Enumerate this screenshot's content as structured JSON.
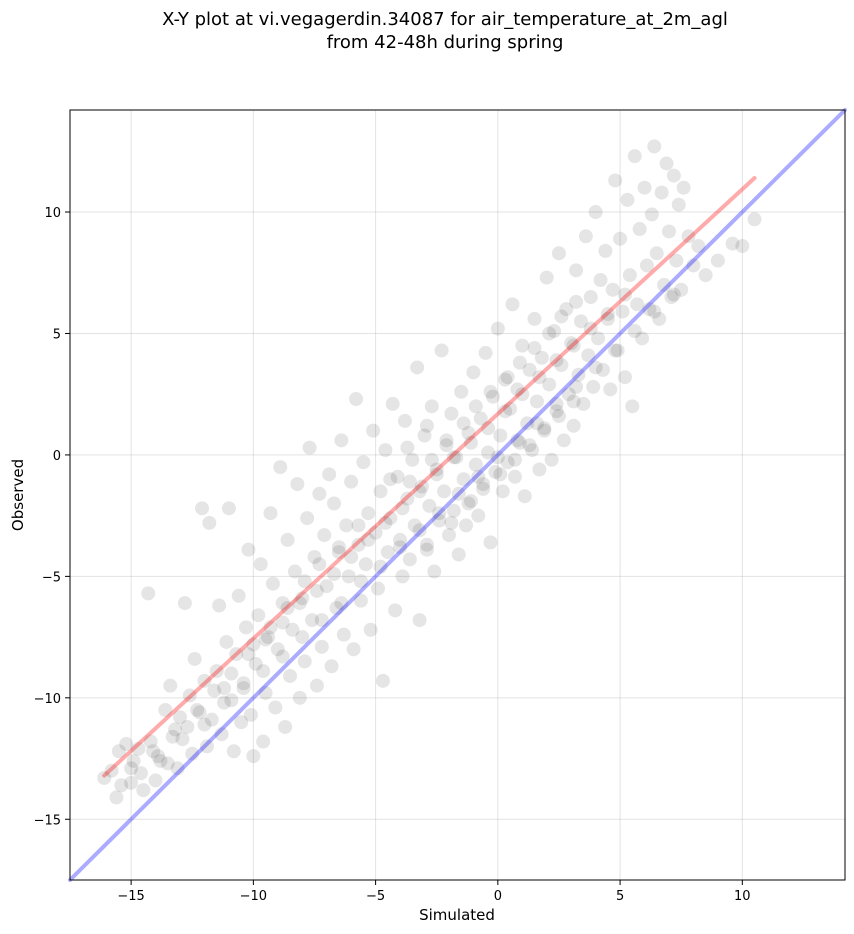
{
  "chart_data": {
    "type": "scatter",
    "title": "X-Y plot at vi.vegagerdin.34087 for air_temperature_at_2m_agl",
    "subtitle": "from 42-48h during spring",
    "xlabel": "Simulated",
    "ylabel": "Observed",
    "xlim": [
      -17.5,
      14.2
    ],
    "ylim": [
      -17.5,
      14.2
    ],
    "xticks": [
      -15,
      -10,
      -5,
      0,
      5,
      10
    ],
    "yticks": [
      -15,
      -10,
      -5,
      0,
      5,
      10
    ],
    "xtick_labels": [
      "−15",
      "−10",
      "−5",
      "0",
      "5",
      "10"
    ],
    "ytick_labels": [
      "−15",
      "−10",
      "−5",
      "0",
      "5",
      "10"
    ],
    "grid": true,
    "point_color": "#000000",
    "point_alpha": 0.1,
    "fit_line": {
      "x": [
        -16.1,
        10.5
      ],
      "y": [
        -13.2,
        11.4
      ],
      "color": "#ff0000"
    },
    "identity_line": {
      "x": [
        -17.5,
        14.2
      ],
      "y": [
        -17.5,
        14.2
      ],
      "color": "#0000ff"
    },
    "points": [
      [
        -16.1,
        -13.3
      ],
      [
        -15.8,
        -13.0
      ],
      [
        -15.6,
        -14.1
      ],
      [
        -15.5,
        -12.2
      ],
      [
        -15.4,
        -13.6
      ],
      [
        -15.2,
        -11.9
      ],
      [
        -15.0,
        -13.5
      ],
      [
        -14.9,
        -12.6
      ],
      [
        -14.7,
        -12.1
      ],
      [
        -14.5,
        -13.8
      ],
      [
        -14.3,
        -5.7
      ],
      [
        -14.2,
        -11.8
      ],
      [
        -14.0,
        -13.4
      ],
      [
        -13.9,
        -12.4
      ],
      [
        -13.6,
        -10.5
      ],
      [
        -13.5,
        -12.7
      ],
      [
        -13.4,
        -9.5
      ],
      [
        -13.3,
        -11.6
      ],
      [
        -13.1,
        -12.9
      ],
      [
        -13.0,
        -10.8
      ],
      [
        -12.8,
        -6.1
      ],
      [
        -12.7,
        -11.2
      ],
      [
        -12.6,
        -9.9
      ],
      [
        -12.5,
        -12.3
      ],
      [
        -12.4,
        -8.4
      ],
      [
        -12.2,
        -10.6
      ],
      [
        -12.1,
        -2.2
      ],
      [
        -12.0,
        -9.3
      ],
      [
        -11.9,
        -12.0
      ],
      [
        -11.8,
        -2.8
      ],
      [
        -11.7,
        -10.9
      ],
      [
        -11.5,
        -8.9
      ],
      [
        -11.4,
        -6.2
      ],
      [
        -11.3,
        -11.5
      ],
      [
        -11.2,
        -9.6
      ],
      [
        -11.1,
        -7.7
      ],
      [
        -11.0,
        -2.2
      ],
      [
        -10.9,
        -10.1
      ],
      [
        -10.8,
        -12.2
      ],
      [
        -10.7,
        -8.2
      ],
      [
        -10.6,
        -5.8
      ],
      [
        -10.5,
        -11.0
      ],
      [
        -10.4,
        -9.4
      ],
      [
        -10.3,
        -7.1
      ],
      [
        -10.2,
        -3.9
      ],
      [
        -10.1,
        -10.7
      ],
      [
        -10.0,
        -12.4
      ],
      [
        -9.9,
        -8.6
      ],
      [
        -9.8,
        -6.6
      ],
      [
        -9.7,
        -4.5
      ],
      [
        -9.6,
        -11.8
      ],
      [
        -9.5,
        -9.8
      ],
      [
        -9.4,
        -7.5
      ],
      [
        -9.3,
        -2.4
      ],
      [
        -9.2,
        -5.3
      ],
      [
        -9.1,
        -10.4
      ],
      [
        -9.0,
        -8.0
      ],
      [
        -8.9,
        -0.5
      ],
      [
        -8.8,
        -6.1
      ],
      [
        -8.7,
        -11.2
      ],
      [
        -8.6,
        -3.5
      ],
      [
        -8.5,
        -9.1
      ],
      [
        -8.4,
        -7.2
      ],
      [
        -8.3,
        -4.8
      ],
      [
        -8.2,
        -1.2
      ],
      [
        -8.1,
        -10.0
      ],
      [
        -8.0,
        -5.9
      ],
      [
        -7.9,
        -8.5
      ],
      [
        -7.8,
        -2.6
      ],
      [
        -7.7,
        0.3
      ],
      [
        -7.6,
        -6.8
      ],
      [
        -7.5,
        -4.2
      ],
      [
        -7.4,
        -9.5
      ],
      [
        -7.3,
        -1.6
      ],
      [
        -7.2,
        -7.9
      ],
      [
        -7.1,
        -3.3
      ],
      [
        -7.0,
        -5.4
      ],
      [
        -6.9,
        -0.8
      ],
      [
        -6.8,
        -8.7
      ],
      [
        -6.7,
        -2.0
      ],
      [
        -6.6,
        -6.3
      ],
      [
        -6.5,
        -4.0
      ],
      [
        -6.4,
        0.6
      ],
      [
        -6.3,
        -7.4
      ],
      [
        -6.2,
        -2.9
      ],
      [
        -6.1,
        -5.0
      ],
      [
        -6.0,
        -1.1
      ],
      [
        -5.9,
        -8.0
      ],
      [
        -5.8,
        2.3
      ],
      [
        -5.7,
        -3.7
      ],
      [
        -5.6,
        -6.0
      ],
      [
        -5.5,
        -0.3
      ],
      [
        -5.4,
        -4.5
      ],
      [
        -5.3,
        -2.4
      ],
      [
        -5.2,
        -7.2
      ],
      [
        -5.1,
        1.0
      ],
      [
        -5.0,
        -3.2
      ],
      [
        -4.9,
        -5.5
      ],
      [
        -4.8,
        -1.5
      ],
      [
        -4.7,
        -9.3
      ],
      [
        -4.6,
        0.2
      ],
      [
        -4.5,
        -4.0
      ],
      [
        -4.4,
        -2.6
      ],
      [
        -4.3,
        2.1
      ],
      [
        -4.2,
        -6.4
      ],
      [
        -4.1,
        -0.9
      ],
      [
        -4.0,
        -3.5
      ],
      [
        -3.9,
        -5.0
      ],
      [
        -3.8,
        1.4
      ],
      [
        -3.7,
        -1.8
      ],
      [
        -3.6,
        -4.3
      ],
      [
        -3.5,
        -0.2
      ],
      [
        -3.4,
        -2.9
      ],
      [
        -3.3,
        3.6
      ],
      [
        -3.2,
        -6.8
      ],
      [
        -3.1,
        -1.3
      ],
      [
        -3.0,
        0.8
      ],
      [
        -2.9,
        -3.7
      ],
      [
        -2.8,
        -2.1
      ],
      [
        -2.7,
        2.0
      ],
      [
        -2.6,
        -4.8
      ],
      [
        -2.5,
        -0.6
      ],
      [
        -2.4,
        -2.7
      ],
      [
        -2.3,
        4.3
      ],
      [
        -2.2,
        -1.5
      ],
      [
        -2.1,
        0.4
      ],
      [
        -2.0,
        -3.3
      ],
      [
        -1.9,
        1.7
      ],
      [
        -1.8,
        -2.3
      ],
      [
        -1.7,
        -0.1
      ],
      [
        -1.6,
        -4.1
      ],
      [
        -1.5,
        2.6
      ],
      [
        -1.4,
        -1.0
      ],
      [
        -1.3,
        -2.9
      ],
      [
        -1.2,
        0.9
      ],
      [
        -1.1,
        -1.9
      ],
      [
        -1.0,
        3.4
      ],
      [
        -0.9,
        -0.4
      ],
      [
        -0.8,
        -2.5
      ],
      [
        -0.7,
        1.5
      ],
      [
        -0.6,
        -1.2
      ],
      [
        -0.5,
        4.2
      ],
      [
        -0.4,
        0.1
      ],
      [
        -0.3,
        -3.6
      ],
      [
        -0.2,
        2.4
      ],
      [
        -0.1,
        -0.7
      ],
      [
        0.0,
        5.2
      ],
      [
        0.1,
        0.8
      ],
      [
        0.2,
        -1.5
      ],
      [
        0.3,
        3.1
      ],
      [
        0.4,
        -0.3
      ],
      [
        0.5,
        1.9
      ],
      [
        0.6,
        6.2
      ],
      [
        0.7,
        -0.9
      ],
      [
        0.8,
        2.7
      ],
      [
        0.9,
        0.5
      ],
      [
        1.0,
        4.5
      ],
      [
        1.1,
        -1.7
      ],
      [
        1.2,
        1.3
      ],
      [
        1.3,
        3.5
      ],
      [
        1.4,
        0.2
      ],
      [
        1.5,
        5.6
      ],
      [
        1.6,
        2.2
      ],
      [
        1.7,
        -0.6
      ],
      [
        1.8,
        4.0
      ],
      [
        1.9,
        1.1
      ],
      [
        2.0,
        7.3
      ],
      [
        2.1,
        2.9
      ],
      [
        2.2,
        -0.2
      ],
      [
        2.3,
        5.1
      ],
      [
        2.4,
        1.8
      ],
      [
        2.5,
        8.3
      ],
      [
        2.6,
        3.7
      ],
      [
        2.7,
        0.6
      ],
      [
        2.8,
        6.0
      ],
      [
        2.9,
        2.5
      ],
      [
        3.0,
        4.6
      ],
      [
        3.1,
        1.2
      ],
      [
        3.2,
        7.6
      ],
      [
        3.3,
        3.3
      ],
      [
        3.4,
        5.5
      ],
      [
        3.5,
        2.1
      ],
      [
        3.6,
        9.0
      ],
      [
        3.7,
        4.1
      ],
      [
        3.8,
        6.5
      ],
      [
        3.9,
        2.8
      ],
      [
        4.0,
        10.0
      ],
      [
        4.1,
        4.8
      ],
      [
        4.2,
        7.2
      ],
      [
        4.3,
        3.5
      ],
      [
        4.4,
        8.4
      ],
      [
        4.5,
        5.6
      ],
      [
        4.6,
        2.7
      ],
      [
        4.7,
        6.8
      ],
      [
        4.8,
        11.3
      ],
      [
        4.9,
        4.3
      ],
      [
        5.0,
        8.9
      ],
      [
        5.1,
        5.9
      ],
      [
        5.2,
        3.2
      ],
      [
        5.3,
        10.5
      ],
      [
        5.4,
        7.4
      ],
      [
        5.5,
        2.0
      ],
      [
        5.6,
        12.3
      ],
      [
        5.7,
        6.2
      ],
      [
        5.8,
        9.3
      ],
      [
        5.9,
        4.8
      ],
      [
        6.0,
        11.0
      ],
      [
        6.1,
        7.8
      ],
      [
        6.2,
        6.0
      ],
      [
        6.3,
        9.9
      ],
      [
        6.4,
        12.7
      ],
      [
        6.5,
        8.3
      ],
      [
        6.6,
        5.6
      ],
      [
        6.7,
        10.8
      ],
      [
        6.8,
        7.0
      ],
      [
        6.9,
        12.0
      ],
      [
        7.0,
        9.2
      ],
      [
        7.1,
        6.5
      ],
      [
        7.2,
        11.5
      ],
      [
        7.3,
        8.0
      ],
      [
        7.4,
        10.3
      ],
      [
        7.5,
        6.8
      ],
      [
        7.6,
        11.0
      ],
      [
        7.8,
        9.0
      ],
      [
        8.0,
        7.8
      ],
      [
        8.2,
        8.6
      ],
      [
        8.5,
        7.4
      ],
      [
        9.0,
        8.0
      ],
      [
        9.6,
        8.7
      ],
      [
        10.0,
        8.6
      ],
      [
        10.5,
        9.7
      ],
      [
        -15.0,
        -12.9
      ],
      [
        -14.1,
        -12.2
      ],
      [
        -13.2,
        -11.3
      ],
      [
        -12.3,
        -10.5
      ],
      [
        -11.6,
        -9.7
      ],
      [
        -10.9,
        -9.0
      ],
      [
        -10.2,
        -8.2
      ],
      [
        -9.5,
        -7.6
      ],
      [
        -8.8,
        -6.9
      ],
      [
        -8.1,
        -6.1
      ],
      [
        -7.4,
        -5.6
      ],
      [
        -6.7,
        -4.9
      ],
      [
        -6.0,
        -4.2
      ],
      [
        -5.3,
        -3.5
      ],
      [
        -4.6,
        -2.8
      ],
      [
        -3.9,
        -2.2
      ],
      [
        -3.2,
        -1.5
      ],
      [
        -2.5,
        -0.8
      ],
      [
        -1.8,
        -0.1
      ],
      [
        -1.1,
        0.5
      ],
      [
        -0.4,
        1.1
      ],
      [
        0.3,
        1.8
      ],
      [
        1.0,
        2.5
      ],
      [
        1.7,
        3.2
      ],
      [
        2.4,
        3.9
      ],
      [
        3.1,
        4.5
      ],
      [
        3.8,
        5.2
      ],
      [
        4.5,
        5.8
      ],
      [
        5.2,
        6.6
      ],
      [
        -14.6,
        -13.1
      ],
      [
        -13.8,
        -12.6
      ],
      [
        -12.9,
        -11.7
      ],
      [
        -12.0,
        -11.1
      ],
      [
        -11.2,
        -10.2
      ],
      [
        -10.4,
        -9.6
      ],
      [
        -9.6,
        -8.9
      ],
      [
        -8.8,
        -8.3
      ],
      [
        -8.0,
        -7.5
      ],
      [
        -7.2,
        -6.8
      ],
      [
        -6.4,
        -6.1
      ],
      [
        -5.6,
        -5.2
      ],
      [
        -4.8,
        -4.6
      ],
      [
        -4.0,
        -3.8
      ],
      [
        -3.2,
        -3.1
      ],
      [
        -2.4,
        -2.4
      ],
      [
        -1.6,
        -1.6
      ],
      [
        -0.8,
        -0.9
      ],
      [
        0.0,
        -0.1
      ],
      [
        0.8,
        0.6
      ],
      [
        1.6,
        1.3
      ],
      [
        2.4,
        2.1
      ],
      [
        3.2,
        2.8
      ],
      [
        4.0,
        3.6
      ],
      [
        4.8,
        4.3
      ],
      [
        5.6,
        5.1
      ],
      [
        6.4,
        5.9
      ],
      [
        7.2,
        6.6
      ],
      [
        -3.6,
        -1.1
      ],
      [
        -2.7,
        -0.2
      ],
      [
        -2.1,
        0.6
      ],
      [
        -1.4,
        1.3
      ],
      [
        -0.9,
        2.0
      ],
      [
        -0.3,
        2.6
      ],
      [
        0.4,
        3.2
      ],
      [
        0.9,
        3.8
      ],
      [
        1.5,
        4.4
      ],
      [
        2.1,
        5.0
      ],
      [
        2.6,
        5.7
      ],
      [
        3.2,
        6.3
      ],
      [
        -1.9,
        -2.8
      ],
      [
        -1.2,
        -2.0
      ],
      [
        -0.6,
        -1.4
      ],
      [
        0.1,
        -0.8
      ],
      [
        0.7,
        -0.2
      ],
      [
        1.3,
        0.4
      ],
      [
        1.9,
        1.0
      ],
      [
        2.5,
        1.6
      ],
      [
        3.1,
        2.2
      ],
      [
        -2.9,
        -3.9
      ],
      [
        -4.4,
        -1.0
      ],
      [
        -3.7,
        0.3
      ],
      [
        -2.9,
        1.2
      ],
      [
        -5.7,
        -2.9
      ],
      [
        -6.5,
        -3.8
      ],
      [
        -7.3,
        -4.5
      ],
      [
        -7.9,
        -5.2
      ],
      [
        -8.6,
        -6.3
      ],
      [
        -9.3,
        -7.1
      ],
      [
        -10.0,
        -7.8
      ]
    ]
  }
}
